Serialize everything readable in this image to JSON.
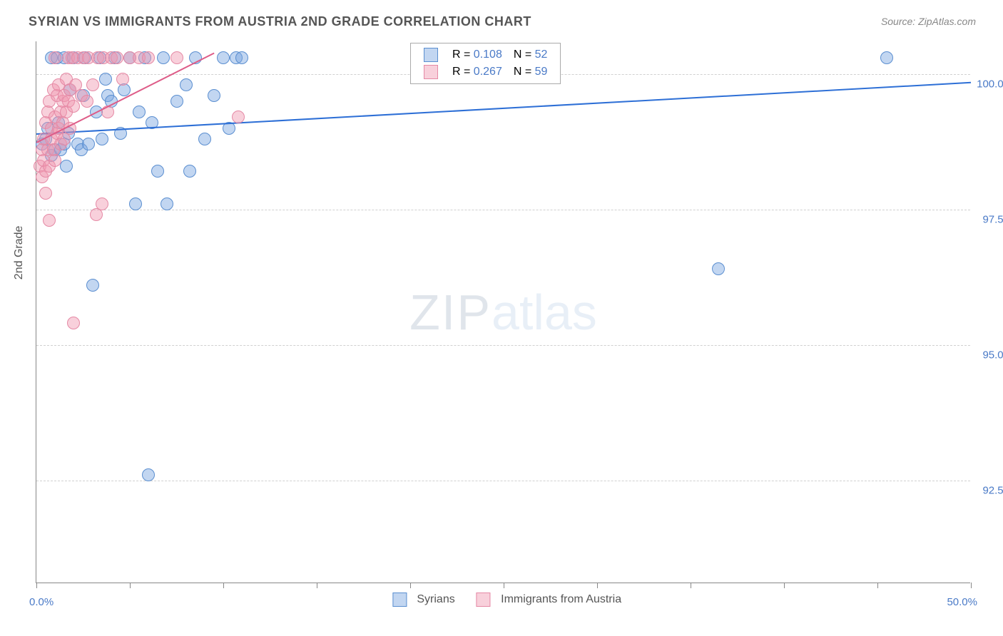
{
  "title": "SYRIAN VS IMMIGRANTS FROM AUSTRIA 2ND GRADE CORRELATION CHART",
  "source": "Source: ZipAtlas.com",
  "y_axis_title": "2nd Grade",
  "watermark": {
    "part1": "ZIP",
    "part2": "atlas"
  },
  "chart": {
    "type": "scatter",
    "xlim": [
      0,
      50
    ],
    "ylim": [
      90.6,
      100.6
    ],
    "x_tick_positions": [
      0,
      5,
      10,
      15,
      20,
      25,
      30,
      35,
      40,
      45,
      50
    ],
    "x_left_label": "0.0%",
    "x_right_label": "50.0%",
    "y_gridlines": [
      {
        "value": 92.5,
        "label": "92.5%"
      },
      {
        "value": 95.0,
        "label": "95.0%"
      },
      {
        "value": 97.5,
        "label": "97.5%"
      },
      {
        "value": 100.0,
        "label": "100.0%"
      }
    ],
    "marker_radius": 9,
    "series": [
      {
        "name": "Syrians",
        "fill_color": "rgba(120,165,225,0.45)",
        "border_color": "#5a8ed0",
        "trend_color": "#2d6fd6",
        "r": "0.108",
        "n": "52",
        "trend": {
          "x1": 0,
          "y1": 98.9,
          "x2": 50,
          "y2": 99.85
        },
        "points": [
          [
            0.3,
            98.7
          ],
          [
            0.5,
            98.8
          ],
          [
            0.6,
            99.0
          ],
          [
            0.8,
            98.5
          ],
          [
            0.8,
            100.3
          ],
          [
            1.0,
            98.6
          ],
          [
            1.1,
            100.3
          ],
          [
            1.2,
            99.1
          ],
          [
            1.3,
            98.6
          ],
          [
            1.5,
            98.7
          ],
          [
            1.5,
            100.3
          ],
          [
            1.6,
            98.3
          ],
          [
            1.7,
            98.9
          ],
          [
            1.8,
            99.7
          ],
          [
            2.0,
            100.3
          ],
          [
            2.2,
            98.7
          ],
          [
            2.4,
            98.6
          ],
          [
            2.5,
            99.6
          ],
          [
            2.6,
            100.3
          ],
          [
            2.8,
            98.7
          ],
          [
            3.0,
            96.1
          ],
          [
            3.2,
            99.3
          ],
          [
            3.4,
            100.3
          ],
          [
            3.5,
            98.8
          ],
          [
            3.7,
            99.9
          ],
          [
            3.8,
            99.6
          ],
          [
            4.0,
            99.5
          ],
          [
            4.2,
            100.3
          ],
          [
            4.5,
            98.9
          ],
          [
            4.7,
            99.7
          ],
          [
            5.0,
            100.3
          ],
          [
            5.3,
            97.6
          ],
          [
            5.5,
            99.3
          ],
          [
            5.8,
            100.3
          ],
          [
            6.0,
            92.6
          ],
          [
            6.2,
            99.1
          ],
          [
            6.5,
            98.2
          ],
          [
            6.8,
            100.3
          ],
          [
            7.0,
            97.6
          ],
          [
            7.5,
            99.5
          ],
          [
            8.0,
            99.8
          ],
          [
            8.2,
            98.2
          ],
          [
            8.5,
            100.3
          ],
          [
            9.0,
            98.8
          ],
          [
            9.5,
            99.6
          ],
          [
            10.0,
            100.3
          ],
          [
            10.3,
            99.0
          ],
          [
            10.7,
            100.3
          ],
          [
            11.0,
            100.3
          ],
          [
            27.0,
            100.3
          ],
          [
            36.5,
            96.4
          ],
          [
            45.5,
            100.3
          ]
        ]
      },
      {
        "name": "Immigrants from Austria",
        "fill_color": "rgba(240,150,175,0.45)",
        "border_color": "#e589a5",
        "trend_color": "#de5c88",
        "r": "0.267",
        "n": "59",
        "trend": {
          "x1": 0,
          "y1": 98.75,
          "x2": 9.5,
          "y2": 100.4
        },
        "points": [
          [
            0.2,
            98.3
          ],
          [
            0.3,
            98.6
          ],
          [
            0.3,
            98.1
          ],
          [
            0.4,
            98.8
          ],
          [
            0.4,
            98.4
          ],
          [
            0.5,
            99.1
          ],
          [
            0.5,
            98.2
          ],
          [
            0.5,
            97.8
          ],
          [
            0.6,
            99.3
          ],
          [
            0.6,
            98.6
          ],
          [
            0.7,
            99.5
          ],
          [
            0.7,
            98.3
          ],
          [
            0.7,
            97.3
          ],
          [
            0.8,
            99.0
          ],
          [
            0.8,
            98.8
          ],
          [
            0.9,
            98.6
          ],
          [
            0.9,
            99.7
          ],
          [
            1.0,
            99.2
          ],
          [
            1.0,
            98.4
          ],
          [
            1.0,
            100.3
          ],
          [
            1.1,
            99.6
          ],
          [
            1.1,
            98.9
          ],
          [
            1.2,
            99.0
          ],
          [
            1.2,
            99.8
          ],
          [
            1.3,
            99.3
          ],
          [
            1.3,
            98.7
          ],
          [
            1.4,
            99.5
          ],
          [
            1.4,
            99.1
          ],
          [
            1.5,
            99.6
          ],
          [
            1.5,
            98.8
          ],
          [
            1.6,
            99.9
          ],
          [
            1.6,
            99.3
          ],
          [
            1.7,
            100.3
          ],
          [
            1.7,
            99.5
          ],
          [
            1.8,
            99.0
          ],
          [
            1.8,
            99.7
          ],
          [
            1.9,
            100.3
          ],
          [
            2.0,
            99.4
          ],
          [
            2.0,
            95.4
          ],
          [
            2.1,
            99.8
          ],
          [
            2.2,
            100.3
          ],
          [
            2.4,
            99.6
          ],
          [
            2.5,
            100.3
          ],
          [
            2.7,
            99.5
          ],
          [
            2.8,
            100.3
          ],
          [
            3.0,
            99.8
          ],
          [
            3.2,
            97.4
          ],
          [
            3.3,
            100.3
          ],
          [
            3.5,
            97.6
          ],
          [
            3.6,
            100.3
          ],
          [
            3.8,
            99.3
          ],
          [
            4.0,
            100.3
          ],
          [
            4.3,
            100.3
          ],
          [
            4.6,
            99.9
          ],
          [
            5.0,
            100.3
          ],
          [
            5.5,
            100.3
          ],
          [
            6.0,
            100.3
          ],
          [
            7.5,
            100.3
          ],
          [
            10.8,
            99.2
          ]
        ]
      }
    ]
  }
}
